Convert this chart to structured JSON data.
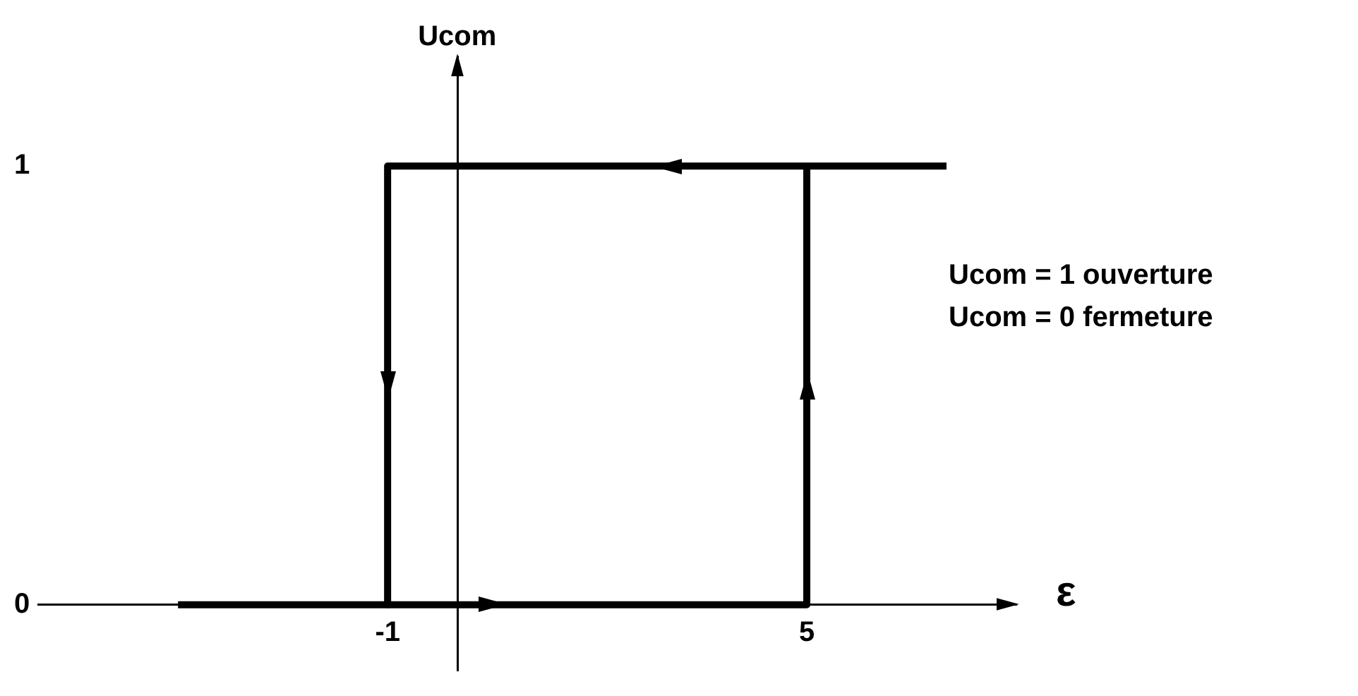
{
  "chart_data": {
    "type": "line",
    "xlabel": "ε",
    "ylabel": "Ucom",
    "xlim": [
      -6,
      8
    ],
    "ylim": [
      -0.15,
      1.25
    ],
    "xticks": [
      -1,
      5
    ],
    "yticks": [
      0,
      1
    ],
    "series": [
      {
        "color": "#000000",
        "x": [
          -4,
          5,
          5
        ],
        "values": [
          0,
          0,
          1
        ]
      },
      {
        "color": "#000000",
        "x": [
          7,
          -1,
          -1
        ],
        "values": [
          1,
          1,
          0
        ]
      }
    ],
    "annotations": [
      "Ucom = 1  ouverture",
      "Ucom = 0  fermeture"
    ],
    "grid": false,
    "legend": false,
    "marker": "none",
    "line_style": "solid"
  }
}
